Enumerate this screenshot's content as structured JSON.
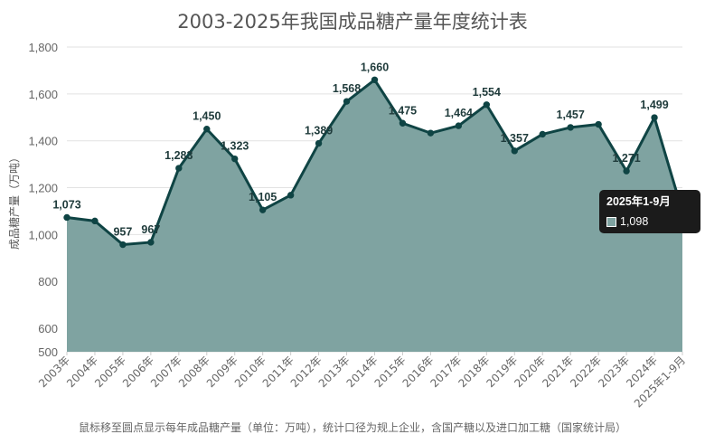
{
  "chart_data": {
    "type": "area",
    "title": "2003-2025年我国成品糖产量年度统计表",
    "ylabel": "成品糖产量（万吨）",
    "xlabel": "",
    "ylim": [
      500,
      1800
    ],
    "yticks": [
      500,
      600,
      800,
      1000,
      1200,
      1400,
      1600,
      1800
    ],
    "ytick_labels": [
      "500",
      "600",
      "800",
      "1,000",
      "1,200",
      "1,400",
      "1,600",
      "1,800"
    ],
    "grid": true,
    "categories": [
      "2003年",
      "2004年",
      "2005年",
      "2006年",
      "2007年",
      "2008年",
      "2009年",
      "2010年",
      "2011年",
      "2012年",
      "2013年",
      "2014年",
      "2015年",
      "2016年",
      "2017年",
      "2018年",
      "2019年",
      "2020年",
      "2021年",
      "2022年",
      "2023年",
      "2024年",
      "2025年1-9月"
    ],
    "values": [
      1073,
      1058,
      957,
      967,
      1283,
      1450,
      1323,
      1105,
      1168,
      1389,
      1568,
      1660,
      1475,
      1433,
      1464,
      1554,
      1357,
      1428,
      1457,
      1470,
      1271,
      1499,
      1098
    ],
    "data_labels": [
      "1,073",
      "",
      "957",
      "967",
      "1,283",
      "1,450",
      "1,323",
      "1,105",
      "",
      "1,389",
      "1,568",
      "1,660",
      "1,475",
      "",
      "1,464",
      "1,554",
      "1,357",
      "",
      "1,457",
      "",
      "1,271",
      "1,499",
      "1,098"
    ],
    "footnote": "鼠标移至圆点显示每年成品糖产量（单位：万吨），统计口径为规上企业，含国产糖以及进口加工糖（国家统计局）",
    "colors": {
      "fill": "#7fa3a1",
      "line": "#0f4444",
      "grid": "#e2e2e2",
      "label": "#1f3b3b"
    }
  },
  "tooltip": {
    "title": "2025年1-9月",
    "value": "1,098",
    "swatch_color": "#7fa3a1"
  }
}
